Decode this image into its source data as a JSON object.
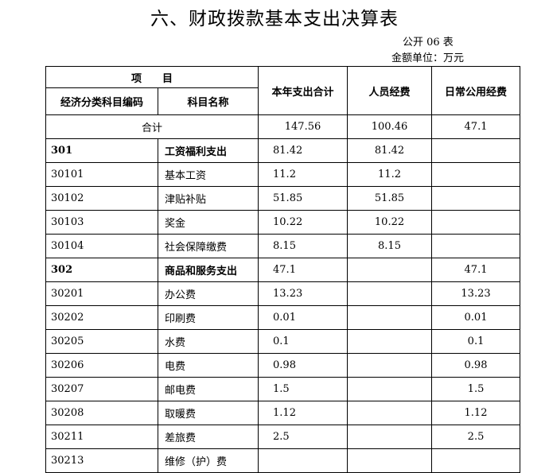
{
  "title": "六、财政拨款基本支出决算表",
  "table_no": "公开 06 表",
  "unit": "金额单位：万元",
  "headers": {
    "item": "项　　目",
    "code": "经济分类科目编码",
    "name": "科目名称",
    "total": "本年支出合计",
    "personnel": "人员经费",
    "public": "日常公用经费"
  },
  "total_row": {
    "label": "合计",
    "total": "147.56",
    "personnel": "100.46",
    "public": "47.1"
  },
  "rows": [
    {
      "code": "301",
      "name": "工资福利支出",
      "total": "81.42",
      "personnel": "81.42",
      "public": "",
      "bold": true
    },
    {
      "code": "30101",
      "name": "基本工资",
      "total": "11.2",
      "personnel": "11.2",
      "public": ""
    },
    {
      "code": "30102",
      "name": "津贴补贴",
      "total": "51.85",
      "personnel": "51.85",
      "public": ""
    },
    {
      "code": "30103",
      "name": "奖金",
      "total": "10.22",
      "personnel": "10.22",
      "public": ""
    },
    {
      "code": "30104",
      "name": "社会保障缴费",
      "total": "8.15",
      "personnel": "8.15",
      "public": ""
    },
    {
      "code": "302",
      "name": "商品和服务支出",
      "total": "47.1",
      "personnel": "",
      "public": "47.1",
      "bold": true
    },
    {
      "code": "30201",
      "name": "办公费",
      "total": "13.23",
      "personnel": "",
      "public": "13.23"
    },
    {
      "code": "30202",
      "name": "印刷费",
      "total": "0.01",
      "personnel": "",
      "public": "0.01"
    },
    {
      "code": "30205",
      "name": "水费",
      "total": "0.1",
      "personnel": "",
      "public": "0.1"
    },
    {
      "code": "30206",
      "name": "电费",
      "total": "0.98",
      "personnel": "",
      "public": "0.98"
    },
    {
      "code": "30207",
      "name": "邮电费",
      "total": "1.5",
      "personnel": "",
      "public": "1.5"
    },
    {
      "code": "30208",
      "name": "取暖费",
      "total": "1.12",
      "personnel": "",
      "public": "1.12"
    },
    {
      "code": "30211",
      "name": "差旅费",
      "total": "2.5",
      "personnel": "",
      "public": "2.5"
    },
    {
      "code": "30213",
      "name": "维修（护）费",
      "total": "",
      "personnel": "",
      "public": ""
    }
  ]
}
